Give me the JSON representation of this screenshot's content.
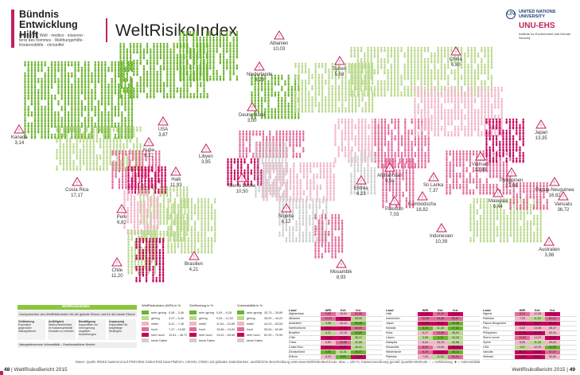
{
  "header": {
    "logo_line1": "Bündnis",
    "logo_line2": "Entwicklung Hilft",
    "logo_partners": "Brot für die Welt · medico · misereor · terre des hommes · Welthungerhilfe · Kindernothilfe · christoffel",
    "title": "WeltRisikoIndex"
  },
  "unu": {
    "emblem": "UN",
    "name": "UNITED NATIONS UNIVERSITY",
    "ehs": "UNU-EHS",
    "sub": "Institute for Environment and Human Security"
  },
  "colors": {
    "accent": "#c1205e",
    "green_dark": "#6cb52d",
    "green_light": "#b9d98c",
    "pink_light": "#f2b6c9",
    "pink": "#e36b98",
    "magenta": "#c8005a",
    "gray": "#cfcfcf"
  },
  "callouts": [
    {
      "name": "Kanada",
      "value": "3,14"
    },
    {
      "name": "USA",
      "value": "3,87"
    },
    {
      "name": "Kuba",
      "value": "6,17"
    },
    {
      "name": "Haiti",
      "value": "11,93"
    },
    {
      "name": "Costa Rica",
      "value": "17,17"
    },
    {
      "name": "Peru",
      "value": "6,82"
    },
    {
      "name": "Chile",
      "value": "11,20"
    },
    {
      "name": "Brasilien",
      "value": "4,21"
    },
    {
      "name": "Niederlande",
      "value": "8,29"
    },
    {
      "name": "Deutschland",
      "value": "3,00"
    },
    {
      "name": "Albanien",
      "value": "10,03"
    },
    {
      "name": "Syrien",
      "value": "5,59"
    },
    {
      "name": "Libyen",
      "value": "3,95"
    },
    {
      "name": "Sierra Leone",
      "value": "10,50"
    },
    {
      "name": "Nigeria",
      "value": "8,12"
    },
    {
      "name": "Eritrea",
      "value": "6,23"
    },
    {
      "name": "Mosambik",
      "value": "8,93"
    },
    {
      "name": "Afghanistan",
      "value": "9,55"
    },
    {
      "name": "Pakistan",
      "value": "7,03"
    },
    {
      "name": "Sri Lanka",
      "value": "7,37"
    },
    {
      "name": "Kambodscha",
      "value": "16,82"
    },
    {
      "name": "China",
      "value": "6,80"
    },
    {
      "name": "Vietnam",
      "value": "12,89"
    },
    {
      "name": "Philippinen",
      "value": "27,98"
    },
    {
      "name": "Japan",
      "value": "13,35"
    },
    {
      "name": "Malaysia",
      "value": "6,44"
    },
    {
      "name": "Papua-Neuguinea",
      "value": "16,82"
    },
    {
      "name": "Vanuatu",
      "value": "36,72"
    },
    {
      "name": "Indonesien",
      "value": "10,39"
    },
    {
      "name": "Australien",
      "value": "3,98"
    }
  ],
  "legend": {
    "title": "WeltRisikoIndex",
    "subtitle": "Komponenten des WeltRisikoIndex für die globale Ebene und für die lokale Ebene",
    "boxes": [
      {
        "head": "Gefährdung",
        "text": "Exposition gegenüber Naturgefahren"
      },
      {
        "head": "Anfälligkeit",
        "text": "Wahrscheinlichkeit, im Katastrophenfall Schaden zu erleiden"
      },
      {
        "head": "Bewältigung",
        "text": "Kapazitäten zur Verringerung negativer Auswirkungen"
      },
      {
        "head": "Anpassung",
        "text": "Kapazitäten für langfristige Strategien"
      }
    ],
    "footer": "Naturgefahrenzone     Vulnerabilität – Gesellschaftlicher Bereich"
  },
  "scales": [
    {
      "head": "WeltRisikoIndex (WRI) in %",
      "rows": [
        {
          "label": "sehr gering",
          "range": "0,08 – 3,46",
          "color": "#6cb52d"
        },
        {
          "label": "gering",
          "range": "3,47 – 5,40",
          "color": "#b9d98c"
        },
        {
          "label": "mittel",
          "range": "5,41 – 7,46",
          "color": "#f2b6c9"
        },
        {
          "label": "hoch",
          "range": "7,47 – 10,80",
          "color": "#e36b98"
        },
        {
          "label": "sehr hoch",
          "range": "10,81 – 36,72",
          "color": "#c8005a"
        },
        {
          "label": "keine Daten",
          "range": "",
          "color": "#cfcfcf"
        }
      ]
    },
    {
      "head": "Gefährdung in %",
      "rows": [
        {
          "label": "sehr gering",
          "range": "0,09 – 9,25",
          "color": "#6cb52d"
        },
        {
          "label": "gering",
          "range": "9,26 – 11,53",
          "color": "#b9d98c"
        },
        {
          "label": "mittel",
          "range": "11,54 – 15,85",
          "color": "#f2b6c9"
        },
        {
          "label": "hoch",
          "range": "15,86 – 19,60",
          "color": "#e36b98"
        },
        {
          "label": "sehr hoch",
          "range": "19,61 – 63,66",
          "color": "#c8005a"
        },
        {
          "label": "keine Daten",
          "range": "",
          "color": "#cfcfcf"
        }
      ]
    },
    {
      "head": "Vulnerabilität in %",
      "rows": [
        {
          "label": "sehr gering",
          "range": "25,73 – 35,89",
          "color": "#6cb52d"
        },
        {
          "label": "gering",
          "range": "35,90 – 44,22",
          "color": "#b9d98c"
        },
        {
          "label": "mittel",
          "range": "44,23 – 53,53",
          "color": "#f2b6c9"
        },
        {
          "label": "hoch",
          "range": "53,54 – 62,89",
          "color": "#e36b98"
        },
        {
          "label": "sehr hoch",
          "range": "62,90 – 75,94",
          "color": "#c8005a"
        },
        {
          "label": "keine Daten",
          "range": "",
          "color": "#cfcfcf"
        }
      ]
    }
  ],
  "tables": [
    {
      "head": "Land",
      "rows": [
        {
          "land": "Afghanistan",
          "v": [
            "9,55",
            "15,51",
            "61,58"
          ]
        },
        {
          "land": "Albanien",
          "v": [
            "10,03",
            "25,72",
            "39,00"
          ]
        },
        {
          "land": "Australien",
          "v": [
            "3,98",
            "15,12",
            "26,38"
          ]
        },
        {
          "land": "Kambodscha",
          "v": [
            "16,82",
            "27,65",
            "60,83"
          ]
        },
        {
          "land": "Brasilien",
          "v": [
            "4,21",
            "12,15",
            "34,69"
          ]
        },
        {
          "land": "Chile",
          "v": [
            "11,20",
            "30,95",
            "36,17"
          ]
        },
        {
          "land": "China",
          "v": [
            "6,80",
            "16,58",
            "41,06"
          ]
        },
        {
          "land": "Costa Rica",
          "v": [
            "17,17",
            "42,61",
            "40,31"
          ]
        },
        {
          "land": "Deutschland",
          "v": [
            "3,00",
            "11,41",
            "26,27"
          ]
        },
        {
          "land": "Eritrea",
          "v": [
            "6,23",
            "8,60",
            "72,43"
          ]
        }
      ]
    },
    {
      "head": "Land",
      "rows": [
        {
          "land": "Haiti",
          "v": [
            "11,93",
            "16,26",
            "73,40"
          ]
        },
        {
          "land": "Indonesien",
          "v": [
            "10,39",
            "19,36",
            "53,67"
          ]
        },
        {
          "land": "Japan",
          "v": [
            "13,35",
            "45,91",
            "29,08"
          ]
        },
        {
          "land": "Kanada",
          "v": [
            "3,14",
            "11,46",
            "27,43"
          ]
        },
        {
          "land": "Kuba",
          "v": [
            "6,17",
            "15,86",
            "38,91"
          ]
        },
        {
          "land": "Libyen",
          "v": [
            "3,95",
            "9,10",
            "43,39"
          ]
        },
        {
          "land": "Malaysia",
          "v": [
            "6,44",
            "15,76",
            "40,86"
          ]
        },
        {
          "land": "Mosambik",
          "v": [
            "8,93",
            "13,05",
            "68,42"
          ]
        },
        {
          "land": "Niederlande",
          "v": [
            "8,29",
            "31,72",
            "26,13"
          ]
        },
        {
          "land": "Pakistan",
          "v": [
            "7,03",
            "11,52",
            "61,01"
          ]
        }
      ]
    },
    {
      "head": "Land",
      "rows": [
        {
          "land": "Nigeria",
          "v": [
            "8,12",
            "12,08",
            "67,21"
          ]
        },
        {
          "land": "Pakistan",
          "v": [
            "7,03",
            "11,52",
            "61,01"
          ]
        },
        {
          "land": "Papua-Neuguinea",
          "v": [
            "16,82",
            "25,81",
            "65,16"
          ]
        },
        {
          "land": "Peru",
          "v": [
            "6,82",
            "14,68",
            "46,47"
          ]
        },
        {
          "land": "Philippinen",
          "v": [
            "27,98",
            "52,46",
            "53,34"
          ]
        },
        {
          "land": "Sierra Leone",
          "v": [
            "10,50",
            "14,03",
            "74,84"
          ]
        },
        {
          "land": "Syrien",
          "v": [
            "5,59",
            "11,26",
            "49,63"
          ]
        },
        {
          "land": "USA",
          "v": [
            "3,87",
            "12,25",
            "31,59"
          ]
        },
        {
          "land": "Vanuatu",
          "v": [
            "36,72",
            "63,66",
            "57,67"
          ]
        },
        {
          "land": "Vietnam",
          "v": [
            "12,89",
            "25,35",
            "50,84"
          ]
        }
      ]
    }
  ],
  "table_cols": [
    "WRI",
    "Gef.",
    "Vul."
  ],
  "footer": {
    "source": "Daten: Quelle IREES basierend auf PREVIEW Global Risk Data Platform, CIESIN, CRED und globalen Datenbanken; ausführliche Beschreibung unter",
    "source2": "www.WeltRisikoBericht.de. Max. = 100 %, Klassenzuordnung gemäß Quantile-Methode. ↑ = Gefährdung, ✚ = Vulnerabilität",
    "page_left_num": "48",
    "page_left": "WeltRisikoBericht 2015",
    "page_right": "WeltRisikoBericht 2015",
    "page_right_num": "49"
  }
}
